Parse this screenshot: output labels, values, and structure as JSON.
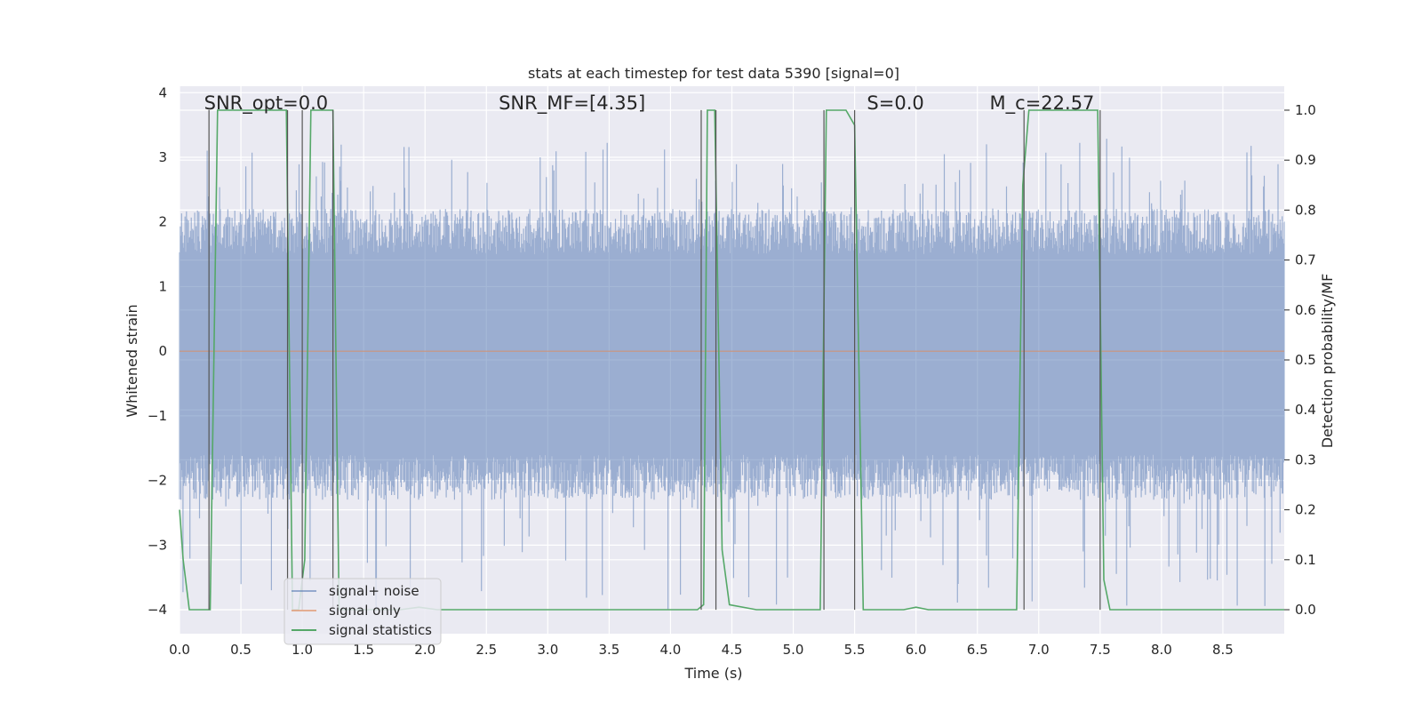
{
  "chart_data": {
    "type": "line",
    "title": "stats at each timestep for test data 5390 [signal=0]",
    "xlabel": "Time (s)",
    "ylabel_left": "Whitened strain",
    "ylabel_right": "Detection probability/MF",
    "xlim": [
      0,
      9.0
    ],
    "ylim_left": [
      -4.37,
      4.1
    ],
    "ylim_right": [
      -0.048,
      1.048
    ],
    "x_ticks": [
      0.0,
      0.5,
      1.0,
      1.5,
      2.0,
      2.5,
      3.0,
      3.5,
      4.0,
      4.5,
      5.0,
      5.5,
      6.0,
      6.5,
      7.0,
      7.5,
      8.0,
      8.5
    ],
    "x_tick_labels": [
      "0.0",
      "0.5",
      "1.0",
      "1.5",
      "2.0",
      "2.5",
      "3.0",
      "3.5",
      "4.0",
      "4.5",
      "5.0",
      "5.5",
      "6.0",
      "6.5",
      "7.0",
      "7.5",
      "8.0",
      "8.5"
    ],
    "y_left_ticks": [
      4,
      3,
      2,
      1,
      0,
      -1,
      -2,
      -3,
      -4
    ],
    "y_left_tick_labels": [
      "4",
      "3",
      "2",
      "1",
      "0",
      "−1",
      "−2",
      "−3",
      "−4"
    ],
    "y_right_ticks": [
      1.0,
      0.9,
      0.8,
      0.7,
      0.6,
      0.5,
      0.4,
      0.3,
      0.2,
      0.1,
      0.0
    ],
    "y_right_tick_labels": [
      "1.0",
      "0.9",
      "0.8",
      "0.7",
      "0.6",
      "0.5",
      "0.4",
      "0.3",
      "0.2",
      "0.1",
      "0.0"
    ],
    "annotations": [
      {
        "text": "SNR_opt=0.0",
        "x": 0.2
      },
      {
        "text": "SNR_MF=[4.35]",
        "x": 2.6
      },
      {
        "text": "S=0.0",
        "x": 5.6
      },
      {
        "text": "M_c=22.57",
        "x": 6.6
      }
    ],
    "series": [
      {
        "name": "signal+ noise",
        "color": "#4c72b0",
        "kind": "noise",
        "amplitude_range": [
          -4.0,
          3.3
        ]
      },
      {
        "name": "signal only",
        "color": "#dd8452",
        "kind": "flat",
        "value": 0.0
      },
      {
        "name": "signal statistics",
        "color": "#55a868",
        "kind": "right-axis",
        "x": [
          0.0,
          0.03,
          0.08,
          0.15,
          0.25,
          0.31,
          0.87,
          0.92,
          0.97,
          1.02,
          1.07,
          1.25,
          1.3,
          1.35,
          1.8,
          1.95,
          2.1,
          4.22,
          4.27,
          4.3,
          4.36,
          4.42,
          4.48,
          4.7,
          5.22,
          5.27,
          5.32,
          5.43,
          5.5,
          5.57,
          5.9,
          6.0,
          6.1,
          6.82,
          6.87,
          6.92,
          6.95,
          7.48,
          7.53,
          7.58,
          7.62,
          9.0
        ],
        "y": [
          0.2,
          0.1,
          0.0,
          0.0,
          0.0,
          1.0,
          1.0,
          0.0,
          0.0,
          0.1,
          1.0,
          1.0,
          0.0,
          0.0,
          0.0,
          0.005,
          0.0,
          0.0,
          0.01,
          1.0,
          1.0,
          0.12,
          0.01,
          0.0,
          0.0,
          1.0,
          1.0,
          1.0,
          0.97,
          0.0,
          0.0,
          0.005,
          0.0,
          0.0,
          0.85,
          1.0,
          1.0,
          1.0,
          0.06,
          0.0,
          0.0,
          0.0
        ]
      }
    ],
    "vlines": [
      {
        "x": 0.24,
        "y0": -4.0,
        "y1": 3.73
      },
      {
        "x": 0.88,
        "y0": -4.0,
        "y1": 3.73
      },
      {
        "x": 1.0,
        "y0": -4.0,
        "y1": 3.73
      },
      {
        "x": 1.25,
        "y0": -4.0,
        "y1": 3.73
      },
      {
        "x": 4.25,
        "y0": -4.0,
        "y1": 3.73
      },
      {
        "x": 4.37,
        "y0": -4.0,
        "y1": 3.73
      },
      {
        "x": 5.25,
        "y0": -4.0,
        "y1": 3.73
      },
      {
        "x": 5.5,
        "y0": -4.0,
        "y1": 3.73
      },
      {
        "x": 6.88,
        "y0": -4.0,
        "y1": 3.73
      },
      {
        "x": 7.5,
        "y0": -4.0,
        "y1": 3.73
      }
    ],
    "legend_position": "lower-left",
    "grid": true
  }
}
